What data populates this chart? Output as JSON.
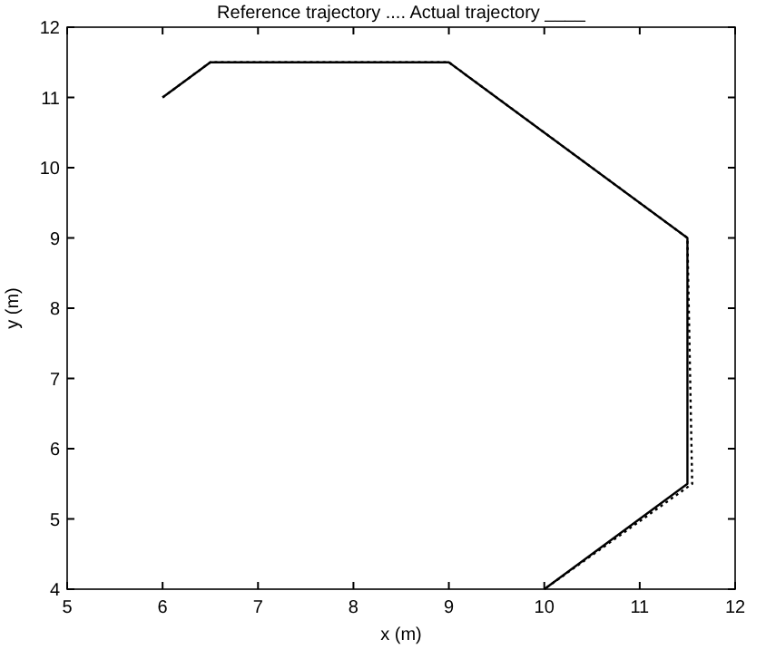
{
  "chart_data": {
    "type": "line",
    "title": "Reference trajectory ....  Actual trajectory ____",
    "xlabel": "x (m)",
    "ylabel": "y (m)",
    "xlim": [
      5,
      12
    ],
    "ylim": [
      4,
      12
    ],
    "xticks": [
      5,
      6,
      7,
      8,
      9,
      10,
      11,
      12
    ],
    "yticks": [
      4,
      5,
      6,
      7,
      8,
      9,
      10,
      11,
      12
    ],
    "grid": false,
    "series": [
      {
        "color": "#000000",
        "line_style": "solid",
        "x": [
          6,
          6.5,
          9,
          11.5,
          11.5,
          10
        ],
        "values": [
          11,
          11.5,
          11.5,
          9,
          5.5,
          4
        ]
      },
      {
        "color": "#000000",
        "line_style": "dotted",
        "x": [
          6,
          6.5,
          8.1,
          9,
          11.5,
          11.55,
          10
        ],
        "values": [
          11,
          11.5,
          11.5,
          11.5,
          9,
          5.5,
          4
        ]
      }
    ]
  }
}
